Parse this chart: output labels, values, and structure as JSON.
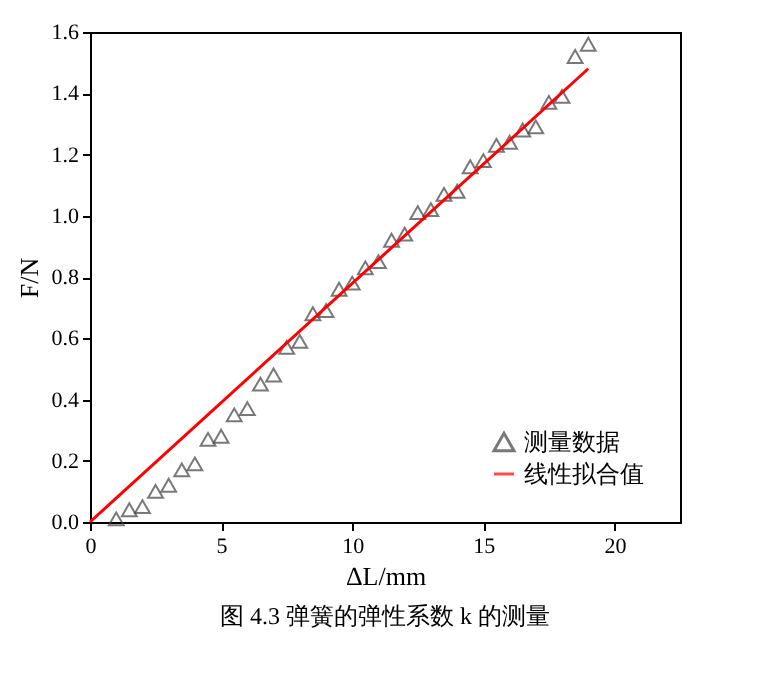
{
  "chart_data": {
    "type": "scatter",
    "xlabel": "ΔL/mm",
    "ylabel": "F/N",
    "annotations": [
      "图 4.3 弹簧的弹性系数 k 的测量"
    ],
    "x": [
      1,
      1.5,
      2,
      2.5,
      3,
      3.5,
      4,
      4.5,
      5,
      5.5,
      6,
      6.5,
      7,
      7.5,
      8,
      8.5,
      9,
      9.5,
      10,
      10.5,
      11,
      11.5,
      12,
      12.5,
      13,
      13.5,
      14,
      14.5,
      15,
      15.5,
      16,
      16.5,
      17,
      17.5,
      18,
      18.5,
      19
    ],
    "series": [
      {
        "name": "测量数据",
        "color": "#404040",
        "marker": "triangle",
        "values": [
          0.01,
          0.04,
          0.05,
          0.1,
          0.12,
          0.17,
          0.19,
          0.27,
          0.28,
          0.35,
          0.37,
          0.45,
          0.48,
          0.57,
          0.59,
          0.68,
          0.69,
          0.76,
          0.78,
          0.83,
          0.85,
          0.92,
          0.94,
          1.01,
          1.02,
          1.07,
          1.08,
          1.16,
          1.18,
          1.23,
          1.24,
          1.28,
          1.29,
          1.37,
          1.39,
          1.52,
          1.56
        ]
      },
      {
        "name": "线性拟合值",
        "type": "line",
        "color": "#ff0000",
        "line_style": "solid",
        "x": [
          0,
          19
        ],
        "values": [
          0,
          1.48
        ]
      }
    ],
    "xlim": [
      0,
      22.5
    ],
    "xticks": [
      0,
      5,
      10,
      15,
      20
    ],
    "ylim": [
      0,
      1.6
    ],
    "yticks": [
      {
        "value": 0,
        "label": "0.0"
      },
      0.2,
      0.4,
      0.6,
      0.8,
      {
        "value": 1,
        "label": "1.0"
      },
      1.2,
      1.4,
      1.6
    ],
    "grid": false,
    "legend": "bottom right"
  }
}
